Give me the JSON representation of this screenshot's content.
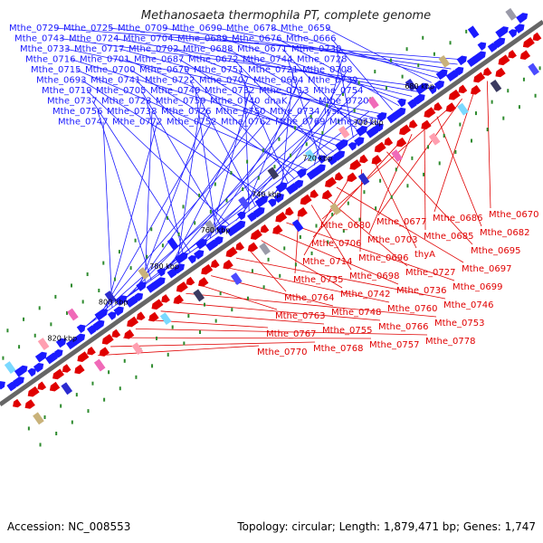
{
  "title": "Methanosaeta thermophila PT, complete genome",
  "footer": {
    "accession": "Accession: NC_008553",
    "summary": "Topology: circular; Length: 1,879,471 bp; Genes: 1,747"
  },
  "ticks": [
    "680 kbp",
    "700 kbp",
    "720 kbp",
    "740 kbp",
    "760 kbp",
    "780 kbp",
    "800 kbp",
    "820 kbp"
  ],
  "forward_labels": [
    "Mthe_0729",
    "Mthe_0725",
    "Mthe_0709",
    "Mthe_0690",
    "Mthe_0678",
    "Mthe_0659",
    "Mthe_0743",
    "Mthe_0724",
    "Mthe_0704",
    "Mthe_0689",
    "Mthe_0676",
    "Mthe_0666",
    "Mthe_0733",
    "Mthe_0717",
    "Mthe_0702",
    "Mthe_0688",
    "Mthe_0671",
    "Mthe_0730",
    "Mthe_0716",
    "Mthe_0701",
    "Mthe_0687",
    "Mthe_0672",
    "Mthe_0744",
    "Mthe_0728",
    "Mthe_0715",
    "Mthe_0700",
    "Mthe_0679",
    "Mthe_0751",
    "Mthe_0721",
    "Mthe_0708",
    "Mthe_0693",
    "Mthe_0741",
    "Mthe_0722",
    "Mthe_0707",
    "Mthe_0694",
    "Mthe_0739",
    "Mthe_0719",
    "Mthe_0705",
    "Mthe_0749",
    "Mthe_0732",
    "Mthe_0713",
    "Mthe_0754",
    "Mthe_0737",
    "Mthe_0723",
    "Mthe_0759",
    "Mthe_0740",
    "dnaK",
    "Mthe_0720",
    "Mthe_0756",
    "Mthe_0738",
    "Mthe_0726",
    "Mthe_0750",
    "Mthe_0734",
    "lysK",
    "Mthe_0747",
    "Mthe_0772",
    "Mthe_0752",
    "Mthe_0762",
    "Mthe_0769",
    "Mthe_0777"
  ],
  "reverse_labels": [
    "Mthe_0670",
    "Mthe_0686",
    "Mthe_0677",
    "Mthe_0680",
    "Mthe_0682",
    "Mthe_0685",
    "Mthe_0703",
    "Mthe_0706",
    "Mthe_0695",
    "thyA",
    "Mthe_0696",
    "Mthe_0714",
    "Mthe_0697",
    "Mthe_0727",
    "Mthe_0698",
    "Mthe_0735",
    "Mthe_0699",
    "Mthe_0736",
    "Mthe_0742",
    "Mthe_0764",
    "Mthe_0746",
    "Mthe_0760",
    "Mthe_0748",
    "Mthe_0763",
    "Mthe_0753",
    "Mthe_0766",
    "Mthe_0755",
    "Mthe_0767",
    "Mthe_0778",
    "Mthe_0757",
    "Mthe_0768",
    "Mthe_0770"
  ],
  "colors": {
    "forward": "#1a1aff",
    "reverse": "#e00000",
    "backbone": "#666666",
    "dots": "#2e8b2e"
  }
}
